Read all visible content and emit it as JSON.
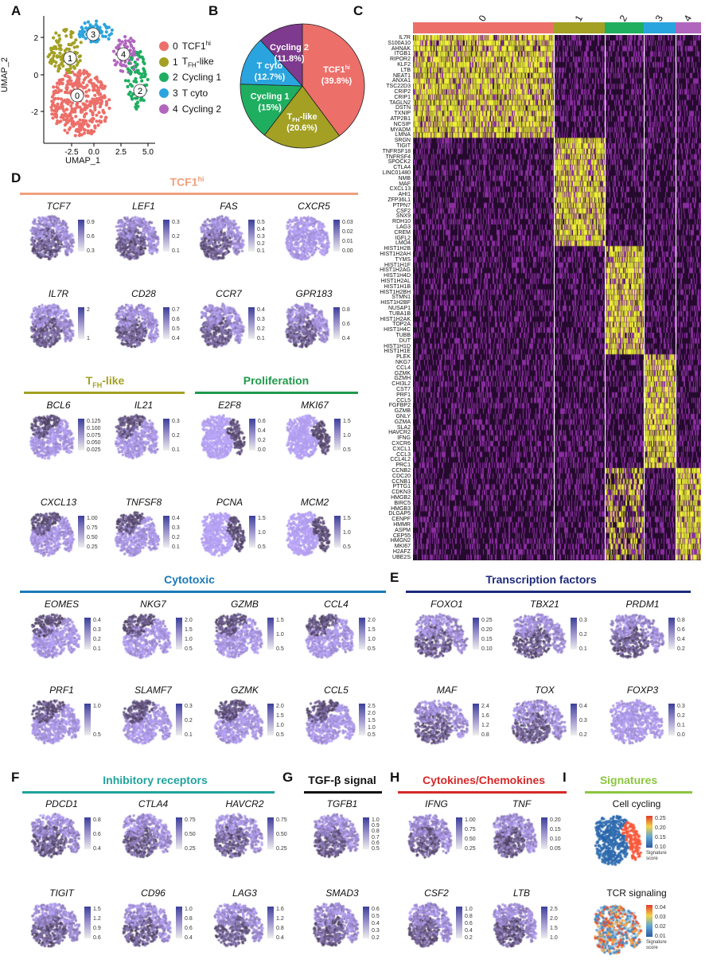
{
  "panels": {
    "A": "A",
    "B": "B",
    "C": "C",
    "D": "D",
    "E": "E",
    "F": "F",
    "G": "G",
    "H": "H",
    "I": "I"
  },
  "umap": {
    "xlabel": "UMAP_1",
    "ylabel": "UMAP_2",
    "xticks": [
      "-2.5",
      "0.0",
      "2.5",
      "5.0"
    ],
    "yticks": [
      "2",
      "0",
      "-2"
    ],
    "clusters": [
      {
        "id": "0",
        "name": "TCF1",
        "sup": "hi",
        "color": "#ec6f69"
      },
      {
        "id": "1",
        "name": "T",
        "sub": "FH",
        "suffix": "-like",
        "color": "#a3a024"
      },
      {
        "id": "2",
        "name": "Cycling 1",
        "color": "#1fae60"
      },
      {
        "id": "3",
        "name": "T cyto",
        "color": "#2aa4de"
      },
      {
        "id": "4",
        "name": "Cycling 2",
        "color": "#b166bd"
      }
    ]
  },
  "chart_data": {
    "type": "pie",
    "slices": [
      {
        "label": "TCF1hi",
        "value": 39.8,
        "text": "(39.8%)",
        "color": "#ec6f69"
      },
      {
        "label": "TFH-like",
        "value": 20.6,
        "text": "(20.6%)",
        "color": "#a3a024"
      },
      {
        "label": "Cycling 1",
        "value": 15,
        "text": "(15%)",
        "color": "#1fae60"
      },
      {
        "label": "T cyto",
        "value": 12.7,
        "text": "(12.7%)",
        "color": "#2aa4de"
      },
      {
        "label": "Cycling 2",
        "value": 11.8,
        "text": "(11.8%)",
        "color": "#7e3a8e"
      }
    ]
  },
  "heatmap": {
    "clusters": [
      "0",
      "1",
      "2",
      "3",
      "4"
    ],
    "genes": [
      "IL7R",
      "S100A10",
      "AHNAK",
      "ITGB1",
      "RIPOR2",
      "KLF2",
      "LTB",
      "NEAT1",
      "ANXA1",
      "TSC22D3",
      "CRIP2",
      "CRIP1",
      "TAGLN2",
      "DSTN",
      "TXNIP",
      "ATP2B1",
      "NCSIP",
      "MYADM",
      "LMNA",
      "SRGN",
      "TIGIT",
      "TNFRSF18",
      "TNFRSF4",
      "SPOCK2",
      "CTLA4",
      "LINC01480",
      "NMB",
      "MAF",
      "CXCL13",
      "AHI1",
      "ZFP36L1",
      "PTPN7",
      "CSF2",
      "SNX9",
      "RDH10",
      "LAG3",
      "CREM",
      "IGFL2",
      "LMO4",
      "HIST1H2B",
      "HIST1H2AH",
      "TYMS",
      "HIST1H1F",
      "HIST1H2AG",
      "HIST1H4D",
      "HIST1H2AL",
      "HIST1H1B",
      "HIST1H2BH",
      "STMN1",
      "HIST1H2BF",
      "NUSAP1",
      "TUBA1B",
      "HIST1H2AK",
      "TOP2A",
      "HIST1H4C",
      "TUBB",
      "DUT",
      "HIST1H1D",
      "HIST1H1E",
      "PLEK",
      "NKG7",
      "CCL4",
      "GZMK",
      "GZMH",
      "CHI3L2",
      "CST7",
      "PRF1",
      "CCL5",
      "FGFBP2",
      "GZMB",
      "GNLY",
      "GZMA",
      "SLA2",
      "HAVCR2",
      "IFNG",
      "CXCR6",
      "CXCL1",
      "CCL3",
      "CCL4L2",
      "PRC1",
      "CCNB2",
      "CDC20",
      "CCNB1",
      "PTTG1",
      "CDKN3",
      "HMGB2",
      "BIRC5",
      "HMGB3",
      "DLGAP5",
      "CENPF",
      "HMMR",
      "ASPM",
      "CEP55",
      "HMGN2",
      "MKI67",
      "H2AFZ",
      "UBE2S"
    ]
  },
  "sections": {
    "tcf": {
      "title": "TCF1",
      "sup": "hi",
      "color": "#f0a07c",
      "rows": [
        [
          {
            "g": "TCF7",
            "t": [
              "0.9",
              "0.6",
              "0.3"
            ]
          },
          {
            "g": "LEF1",
            "t": [
              "0.3",
              "0.2",
              "0.1"
            ]
          },
          {
            "g": "FAS",
            "t": [
              "0.5",
              "0.4",
              "0.3",
              "0.2",
              "0.1"
            ]
          },
          {
            "g": "CXCR5",
            "t": [
              "0.03",
              "0.02",
              "0.01",
              "0.00"
            ]
          }
        ],
        [
          {
            "g": "IL7R",
            "t": [
              "2",
              "1"
            ]
          },
          {
            "g": "CD28",
            "t": [
              "0.7",
              "0.6",
              "0.5",
              "0.4"
            ]
          },
          {
            "g": "CCR7",
            "t": [
              "0.4",
              "0.3",
              "0.2",
              "0.1"
            ]
          },
          {
            "g": "GPR183",
            "t": [
              "0.8",
              "0.6",
              "0.4"
            ]
          }
        ]
      ]
    },
    "tfh": {
      "title": "T",
      "sub": "FH",
      "suffix": "-like",
      "color": "#a3a024",
      "rows": [
        [
          {
            "g": "BCL6",
            "t": [
              "0.125",
              "0.100",
              "0.075",
              "0.050",
              "0.025"
            ]
          },
          {
            "g": "IL21",
            "t": [
              "0.3",
              "0.2",
              "0.1"
            ]
          }
        ],
        [
          {
            "g": "CXCL13",
            "t": [
              "1.00",
              "0.75",
              "0.50",
              "0.25"
            ]
          },
          {
            "g": "TNFSF8",
            "t": [
              "0.4",
              "0.3",
              "0.2",
              "0.1"
            ]
          }
        ]
      ]
    },
    "prolif": {
      "title": "Proliferation",
      "color": "#1f9a4a",
      "rows": [
        [
          {
            "g": "E2F8",
            "t": [
              "0.6",
              "0.4",
              "0.2",
              "0.0"
            ]
          },
          {
            "g": "MKI67",
            "t": [
              "1.5",
              "1.0",
              "0.5"
            ]
          }
        ],
        [
          {
            "g": "PCNA",
            "t": [
              "1.5",
              "1.0",
              "0.5"
            ]
          },
          {
            "g": "MCM2",
            "t": [
              "1.5",
              "1.0",
              "0.5"
            ]
          }
        ]
      ]
    },
    "cyto": {
      "title": "Cytotoxic",
      "color": "#1a7ab8",
      "rows": [
        [
          {
            "g": "EOMES",
            "t": [
              "0.4",
              "0.3",
              "0.2",
              "0.1"
            ]
          },
          {
            "g": "NKG7",
            "t": [
              "2.0",
              "1.5",
              "1.0",
              "0.5"
            ]
          },
          {
            "g": "GZMB",
            "t": [
              "1.5",
              "1.0",
              "0.5"
            ]
          },
          {
            "g": "CCL4",
            "t": [
              "2.0",
              "1.5",
              "1.0",
              "0.5"
            ]
          }
        ],
        [
          {
            "g": "PRF1",
            "t": [
              "1.0",
              "0.5"
            ]
          },
          {
            "g": "SLAMF7",
            "t": [
              "0.3",
              "0.2",
              "0.1"
            ]
          },
          {
            "g": "GZMK",
            "t": [
              "2.0",
              "1.5",
              "1.0",
              "0.5"
            ]
          },
          {
            "g": "CCL5",
            "t": [
              "2.5",
              "2.0",
              "1.5",
              "1.0",
              "0.5"
            ]
          }
        ]
      ]
    },
    "tf": {
      "title": "Transcription factors",
      "color": "#1d2a7a",
      "rows": [
        [
          {
            "g": "FOXO1",
            "t": [
              "0.25",
              "0.20",
              "0.15",
              "0.10"
            ]
          },
          {
            "g": "TBX21",
            "t": [
              "0.3",
              "0.2",
              "0.1"
            ]
          },
          {
            "g": "PRDM1",
            "t": [
              "0.8",
              "0.6",
              "0.4",
              "0.2"
            ]
          }
        ],
        [
          {
            "g": "MAF",
            "t": [
              "2.4",
              "1.6",
              "1.2",
              "0.8"
            ]
          },
          {
            "g": "TOX",
            "t": [
              "0.4",
              "0.3",
              "0.2"
            ]
          },
          {
            "g": "FOXP3",
            "t": [
              "0.3",
              "0.2",
              "0.1",
              "0.0"
            ]
          }
        ]
      ]
    },
    "inhib": {
      "title": "Inhibitory receptors",
      "color": "#1fa39c",
      "rows": [
        [
          {
            "g": "PDCD1",
            "t": [
              "0.8",
              "0.6",
              "0.4"
            ]
          },
          {
            "g": "CTLA4",
            "t": [
              "0.75",
              "0.50",
              "0.25"
            ]
          },
          {
            "g": "HAVCR2",
            "t": [
              "0.75",
              "0.50",
              "0.25"
            ]
          }
        ],
        [
          {
            "g": "TIGIT",
            "t": [
              "1.5",
              "1.2",
              "0.9",
              "0.6"
            ]
          },
          {
            "g": "CD96",
            "t": [
              "1.0",
              "0.8",
              "0.6",
              "0.4"
            ]
          },
          {
            "g": "LAG3",
            "t": [
              "1.6",
              "1.2",
              "0.8",
              "0.4"
            ]
          }
        ]
      ]
    },
    "tgfb": {
      "title": "TGF-β signal",
      "color": "#111111",
      "rows": [
        [
          {
            "g": "TGFB1",
            "t": [
              "1.0",
              "0.9",
              "0.8",
              "0.7",
              "0.6",
              "0.5"
            ]
          }
        ],
        [
          {
            "g": "SMAD3",
            "t": [
              "0.6",
              "0.5",
              "0.4",
              "0.3",
              "0.2"
            ]
          }
        ]
      ]
    },
    "cytok": {
      "title": "Cytokines/Chemokines",
      "color": "#d62828",
      "rows": [
        [
          {
            "g": "IFNG",
            "t": [
              "1.00",
              "0.75",
              "0.50",
              "0.25"
            ]
          },
          {
            "g": "TNF",
            "t": [
              "0.20",
              "0.15",
              "0.10",
              "0.05"
            ]
          }
        ],
        [
          {
            "g": "CSF2",
            "t": [
              "1.0",
              "0.8",
              "0.6",
              "0.4",
              "0.2"
            ]
          },
          {
            "g": "LTB",
            "t": [
              "2.5",
              "2.0",
              "1.5",
              "1.0"
            ]
          }
        ]
      ]
    },
    "sig": {
      "title": "Signatures",
      "color": "#8cc63f",
      "items": [
        {
          "name": "Cell cycling",
          "t": [
            "0.25",
            "0.20",
            "0.15",
            "0.10"
          ],
          "score": "Signature score"
        },
        {
          "name": "TCR signaling",
          "t": [
            "0.04",
            "0.03",
            "0.02",
            "0.01"
          ],
          "score": "Signature score"
        }
      ]
    }
  }
}
